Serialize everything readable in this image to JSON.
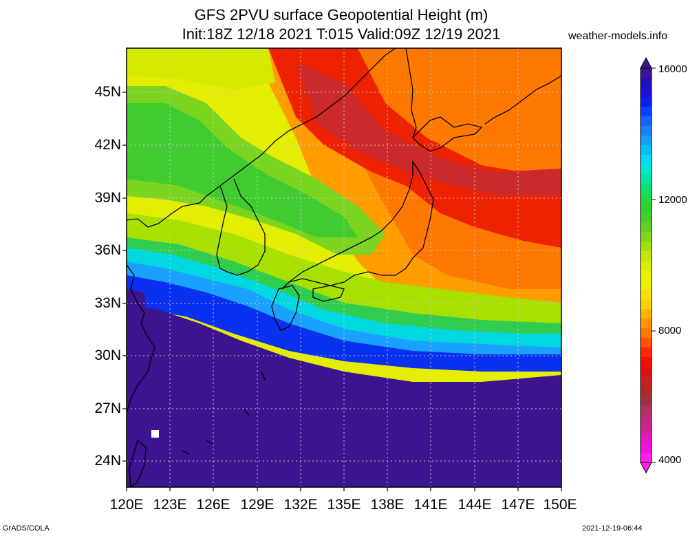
{
  "title_line1": "GFS 2PVU surface Geopotential Height (m)",
  "title_line2": "Init:18Z 12/18 2021 T:015 Valid:09Z 12/19 2021",
  "site": "weather-models.info",
  "footer_left": "GrADS/COLA",
  "footer_right": "2021-12-19-06:44",
  "lat_labels": [
    "45N",
    "42N",
    "39N",
    "36N",
    "33N",
    "30N",
    "27N",
    "24N"
  ],
  "lon_labels": [
    "120E",
    "123E",
    "126E",
    "129E",
    "132E",
    "135E",
    "138E",
    "141E",
    "144E",
    "147E",
    "150E"
  ],
  "colorbar_labels": [
    "16000",
    "12000",
    "8000",
    "4000"
  ]
}
